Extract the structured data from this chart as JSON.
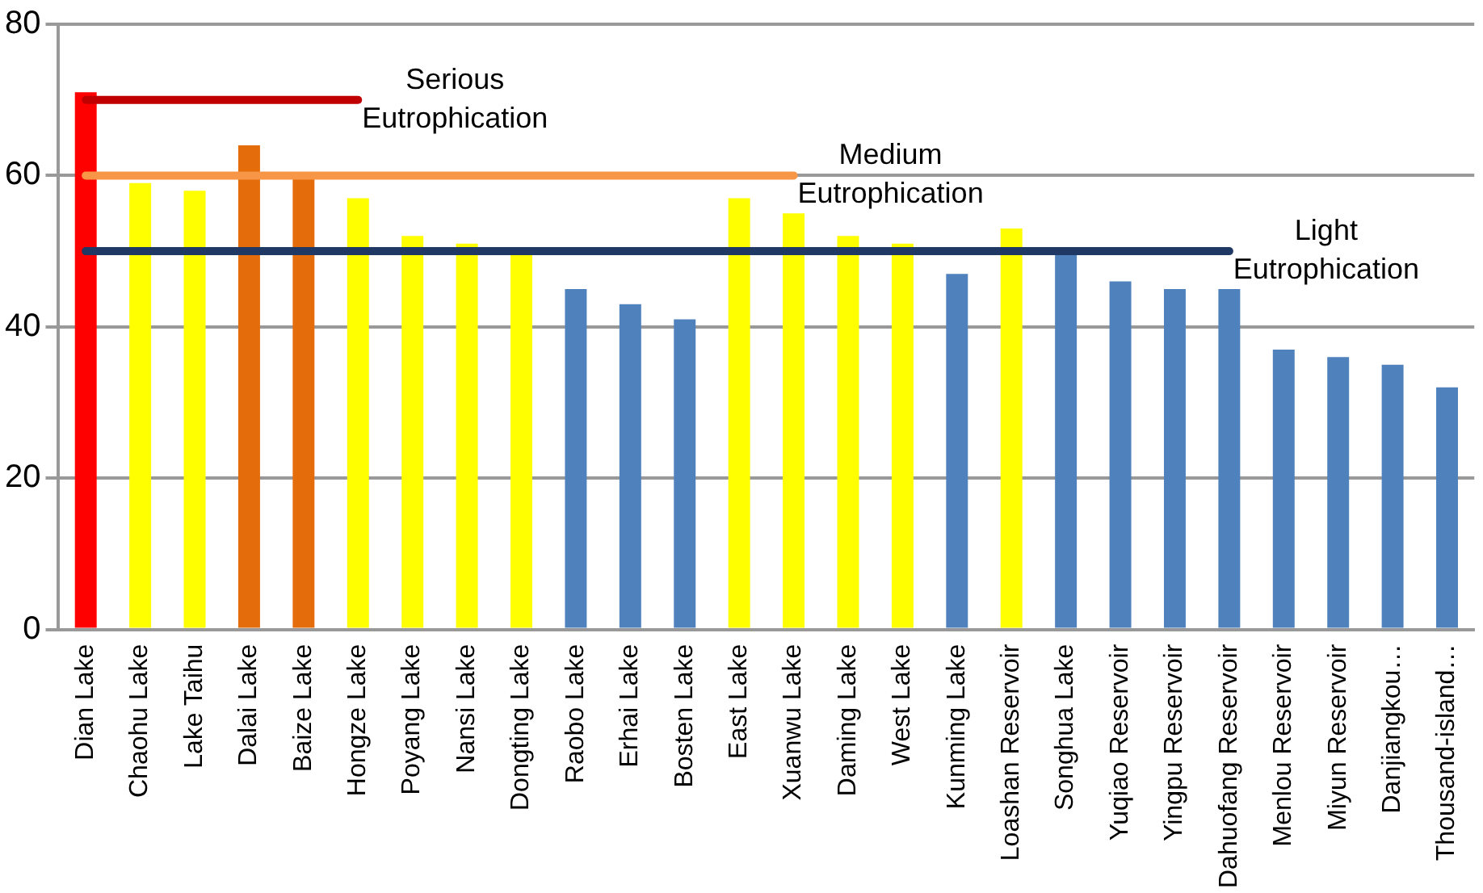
{
  "chart_data": {
    "type": "bar",
    "categories": [
      "Dian Lake",
      "Chaohu Lake",
      "Lake Taihu",
      "Dalai Lake",
      "Baize Lake",
      "Hongze Lake",
      "Poyang Lake",
      "Nansi Lake",
      "Dongting Lake",
      "Raobo Lake",
      "Erhai Lake",
      "Bosten Lake",
      "East Lake",
      "Xuanwu Lake",
      "Daming Lake",
      "West Lake",
      "Kunming Lake",
      "Loashan Reservoir",
      "Songhua Lake",
      "Yuqiao Reservoir",
      "Yingpu Reservoir",
      "Dahuofang Reservoir",
      "Menlou Reservoir",
      "Miyun Reservoir",
      "Danjiangkou…",
      "Thousand-island…"
    ],
    "series": [
      {
        "values": [
          71,
          59,
          58,
          64,
          60,
          57,
          52,
          51,
          50,
          45,
          43,
          41,
          57,
          55,
          52,
          51,
          47,
          53,
          50,
          46,
          45,
          45,
          37,
          36,
          35,
          32
        ],
        "colors": [
          "#ff0000",
          "#ffff00",
          "#ffff00",
          "#e46c0a",
          "#e46c0a",
          "#ffff00",
          "#ffff00",
          "#ffff00",
          "#ffff00",
          "#4f81bd",
          "#4f81bd",
          "#4f81bd",
          "#ffff00",
          "#ffff00",
          "#ffff00",
          "#ffff00",
          "#4f81bd",
          "#ffff00",
          "#4f81bd",
          "#4f81bd",
          "#4f81bd",
          "#4f81bd",
          "#4f81bd",
          "#4f81bd",
          "#4f81bd",
          "#4f81bd"
        ]
      },
      {
        "type": "line",
        "name": "Serious Eutrophication",
        "color": "#c00000",
        "values": [
          70,
          70,
          70,
          70,
          70,
          70,
          null,
          null,
          null,
          null,
          null,
          null,
          null,
          null,
          null,
          null,
          null,
          null,
          null,
          null,
          null,
          null,
          null,
          null,
          null,
          null
        ]
      },
      {
        "type": "line",
        "name": "Medium Eutrophication",
        "color": "#f79646",
        "values": [
          60,
          60,
          60,
          60,
          60,
          60,
          60,
          60,
          60,
          60,
          60,
          60,
          60,
          60,
          null,
          null,
          null,
          null,
          null,
          null,
          null,
          null,
          null,
          null,
          null,
          null
        ]
      },
      {
        "type": "line",
        "name": "Light Eutrophication",
        "color": "#1f3864",
        "values": [
          50,
          50,
          50,
          50,
          50,
          50,
          50,
          50,
          50,
          50,
          50,
          50,
          50,
          50,
          50,
          50,
          50,
          50,
          50,
          50,
          50,
          50,
          null,
          null,
          null,
          null
        ]
      }
    ],
    "ylim": [
      0,
      80
    ],
    "yticks": [
      0,
      20,
      40,
      60,
      80
    ],
    "grid": "y",
    "legend": false,
    "marker": "none",
    "line_style": "solid"
  }
}
